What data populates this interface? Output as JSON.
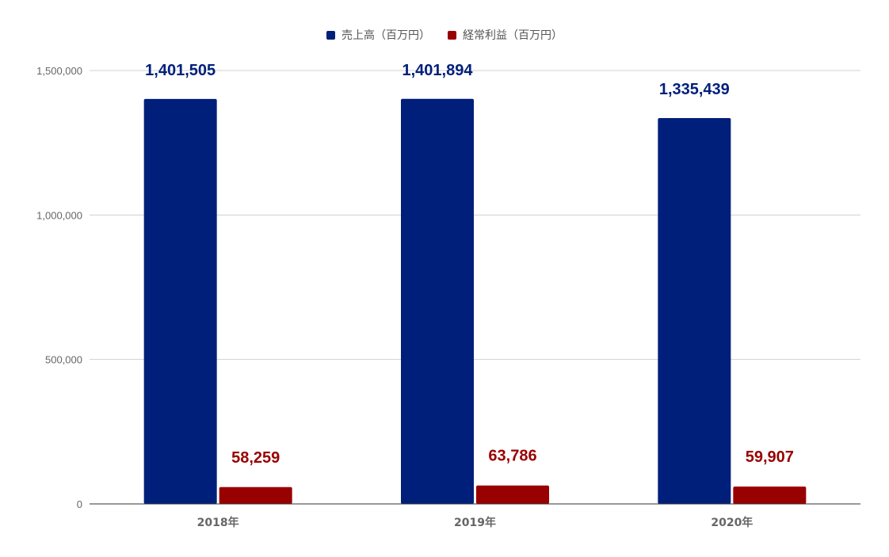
{
  "chart_data": {
    "type": "bar",
    "title": "",
    "xlabel": "",
    "ylabel": "",
    "categories": [
      "2018年",
      "2019年",
      "2020年"
    ],
    "series": [
      {
        "name": "売上高（百万円）",
        "values": [
          1401505,
          1401894,
          1335439
        ],
        "labels": [
          "1,401,505",
          "1,401,894",
          "1,335,439"
        ],
        "color": "#001f7a"
      },
      {
        "name": "経常利益（百万円）",
        "values": [
          58259,
          63786,
          59907
        ],
        "labels": [
          "58,259",
          "63,786",
          "59,907"
        ],
        "color": "#990000"
      }
    ],
    "ylim": [
      0,
      1500000
    ],
    "yticks": [
      0,
      500000,
      1000000,
      1500000
    ],
    "ytick_labels": [
      "0",
      "500,000",
      "1,000,000",
      "1,500,000"
    ],
    "grid": true,
    "legend_position": "top-center"
  }
}
